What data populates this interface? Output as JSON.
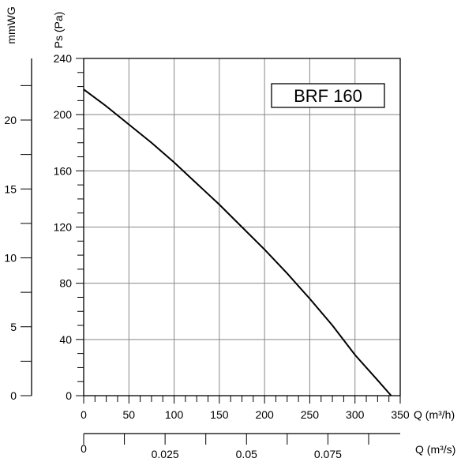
{
  "chart_data": {
    "type": "line",
    "legend_box": "BRF 160",
    "grid": true,
    "x_axis_primary": {
      "label": "Q (m³/h)",
      "range": [
        0,
        350
      ],
      "ticks": [
        "0",
        "50",
        "100",
        "150",
        "200",
        "250",
        "300",
        "350"
      ]
    },
    "x_axis_secondary": {
      "label": "Q (m³/s)",
      "range": [
        0,
        0.0972
      ],
      "ticks": [
        "0",
        "0.025",
        "0.05",
        "0.075"
      ]
    },
    "y_axis_primary": {
      "label": "Ps (Pa)",
      "range": [
        0,
        240
      ],
      "ticks": [
        "0",
        "40",
        "80",
        "120",
        "160",
        "200",
        "240"
      ]
    },
    "y_axis_secondary": {
      "label": "mmWG",
      "range": [
        0,
        24.47
      ],
      "ticks": [
        "0",
        "5",
        "10",
        "15",
        "20"
      ]
    },
    "series": [
      {
        "x": [
          0,
          25,
          50,
          75,
          100,
          125,
          150,
          175,
          200,
          225,
          250,
          275,
          300,
          325,
          340
        ],
        "y": [
          218,
          206,
          193,
          180,
          166,
          151,
          136,
          120,
          104,
          87,
          69,
          50,
          29,
          11,
          0
        ]
      }
    ]
  }
}
